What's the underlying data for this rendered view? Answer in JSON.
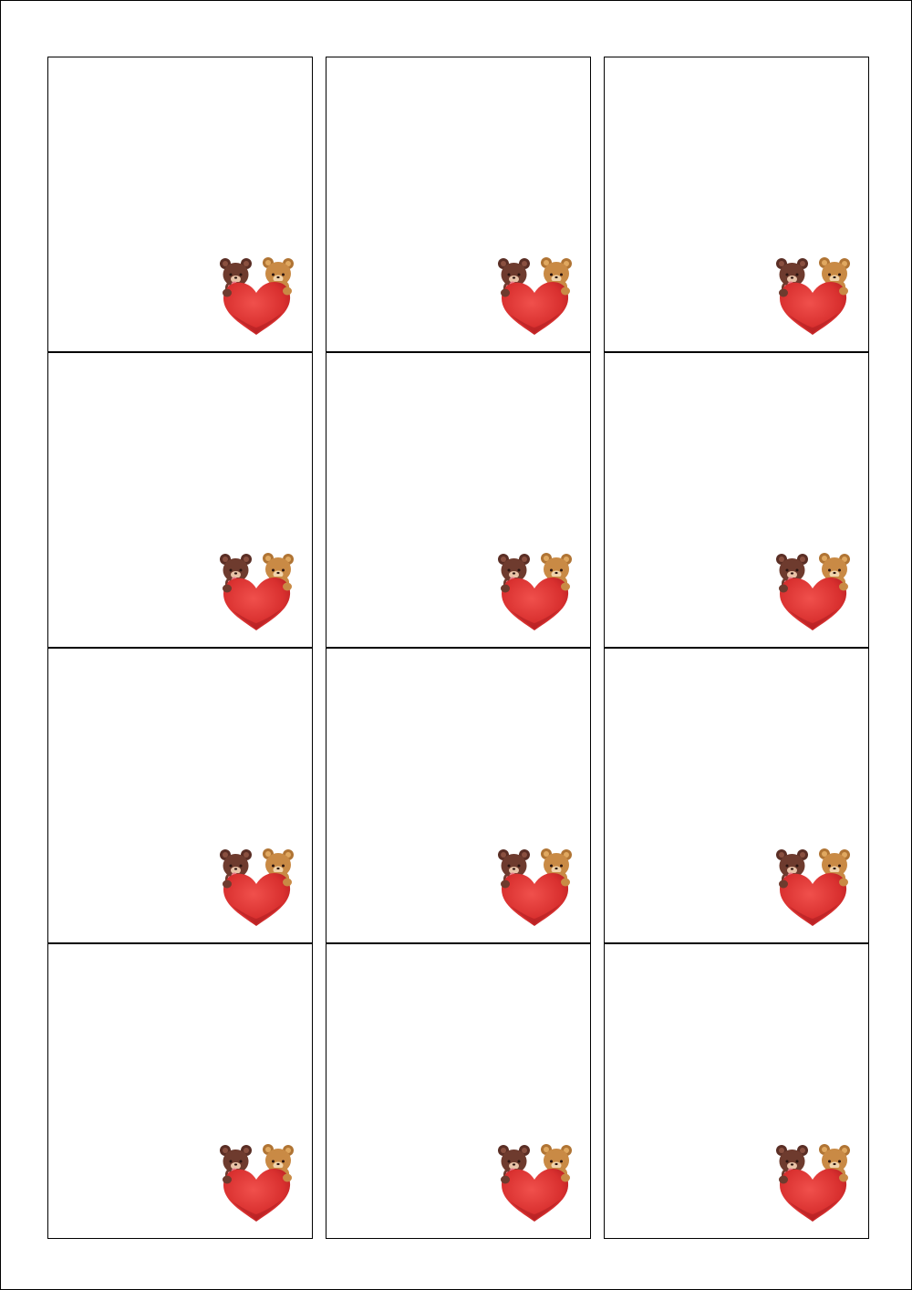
{
  "sheet": {
    "columns": 3,
    "rows": 4,
    "cards": [
      {
        "art": "bears-with-heart-icon"
      },
      {
        "art": "bears-with-heart-icon"
      },
      {
        "art": "bears-with-heart-icon"
      },
      {
        "art": "bears-with-heart-icon"
      },
      {
        "art": "bears-with-heart-icon"
      },
      {
        "art": "bears-with-heart-icon"
      },
      {
        "art": "bears-with-heart-icon"
      },
      {
        "art": "bears-with-heart-icon"
      },
      {
        "art": "bears-with-heart-icon"
      },
      {
        "art": "bears-with-heart-icon"
      },
      {
        "art": "bears-with-heart-icon"
      },
      {
        "art": "bears-with-heart-icon"
      }
    ]
  },
  "colors": {
    "border": "#000000",
    "dark_bear": "#6e3b2e",
    "light_bear": "#c98a45",
    "heart": "#e0393b"
  }
}
